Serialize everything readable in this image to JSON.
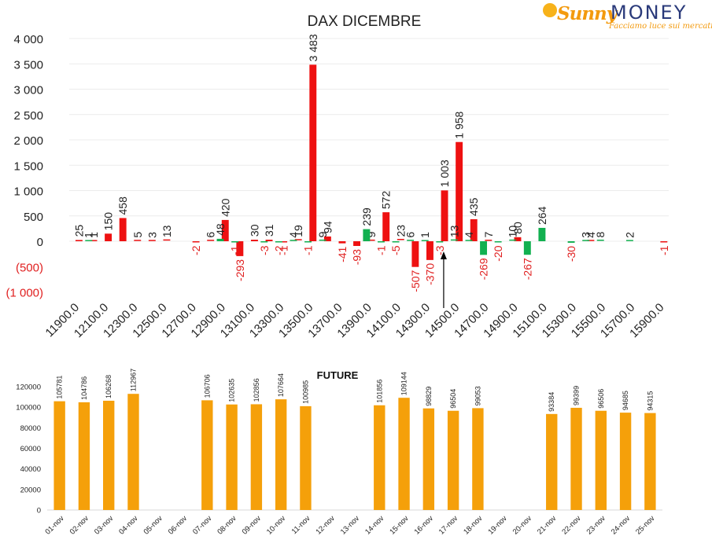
{
  "logo": {
    "brand1": "Sunny",
    "brand2": "MONEY",
    "tagline": "Facciamo luce sui mercati"
  },
  "colors": {
    "calls": "#ee1111",
    "puts": "#12b050",
    "future": "#f5a00a",
    "neg_label": "#e02020",
    "arrow": "#000000"
  },
  "chart_data": [
    {
      "type": "bar",
      "title": "DAX DICEMBRE",
      "ylim": [
        -1000,
        4000
      ],
      "yticks": [
        4000,
        3500,
        3000,
        2500,
        2000,
        1500,
        1000,
        500,
        0,
        -500,
        -1000
      ],
      "ytick_labels": [
        "4 000",
        "3 500",
        "3 000",
        "2 500",
        "2 000",
        "1 500",
        "1 000",
        "500",
        "0",
        "(500)",
        "(1 000)"
      ],
      "xtick_labels": [
        "11900.0",
        "12100.0",
        "12300.0",
        "12500.0",
        "12700.0",
        "12900.0",
        "13100.0",
        "13300.0",
        "13500.0",
        "13700.0",
        "13900.0",
        "14100.0",
        "14300.0",
        "14500.0",
        "14700.0",
        "14900.0",
        "15100.0",
        "15300.0",
        "15500.0",
        "15700.0",
        "15900.0"
      ],
      "strike_step": 100,
      "strike_start": 11900,
      "strike_end": 15900,
      "series": [
        {
          "color_key": "calls",
          "points": [
            {
              "strike": 11900,
              "value": 25
            },
            {
              "strike": 12000,
              "value": 1
            },
            {
              "strike": 12100,
              "value": 150
            },
            {
              "strike": 12200,
              "value": 458
            },
            {
              "strike": 12300,
              "value": 5
            },
            {
              "strike": 12400,
              "value": 3
            },
            {
              "strike": 12500,
              "value": 13
            },
            {
              "strike": 12700,
              "value": -2
            },
            {
              "strike": 12800,
              "value": 6
            },
            {
              "strike": 12900,
              "value": 420
            },
            {
              "strike": 13000,
              "value": -293
            },
            {
              "strike": 13100,
              "value": 30
            },
            {
              "strike": 13200,
              "value": 31
            },
            {
              "strike": 13300,
              "value": -1
            },
            {
              "strike": 13400,
              "value": 19
            },
            {
              "strike": 13500,
              "value": 3483
            },
            {
              "strike": 13600,
              "value": 94
            },
            {
              "strike": 13700,
              "value": -41
            },
            {
              "strike": 13800,
              "value": -93
            },
            {
              "strike": 13900,
              "value": 9
            },
            {
              "strike": 14000,
              "value": 572
            },
            {
              "strike": 14100,
              "value": 23
            },
            {
              "strike": 14200,
              "value": -507
            },
            {
              "strike": 14300,
              "value": -370
            },
            {
              "strike": 14400,
              "value": 1003
            },
            {
              "strike": 14500,
              "value": 1958
            },
            {
              "strike": 14600,
              "value": 435
            },
            {
              "strike": 14700,
              "value": 7
            },
            {
              "strike": 14900,
              "value": 80
            },
            {
              "strike": 15400,
              "value": 4
            },
            {
              "strike": 15900,
              "value": -1
            }
          ]
        },
        {
          "color_key": "puts",
          "points": [
            {
              "strike": 12000,
              "value": 1
            },
            {
              "strike": 12900,
              "value": 48
            },
            {
              "strike": 13000,
              "value": -1
            },
            {
              "strike": 13200,
              "value": -3
            },
            {
              "strike": 13300,
              "value": -2
            },
            {
              "strike": 13400,
              "value": 4
            },
            {
              "strike": 13500,
              "value": -1
            },
            {
              "strike": 13600,
              "value": 9
            },
            {
              "strike": 13900,
              "value": 239
            },
            {
              "strike": 14000,
              "value": -1
            },
            {
              "strike": 14100,
              "value": -5
            },
            {
              "strike": 14200,
              "value": 6
            },
            {
              "strike": 14300,
              "value": 1
            },
            {
              "strike": 14400,
              "value": -3
            },
            {
              "strike": 14500,
              "value": 13
            },
            {
              "strike": 14600,
              "value": 4
            },
            {
              "strike": 14700,
              "value": -269
            },
            {
              "strike": 14800,
              "value": -20
            },
            {
              "strike": 14900,
              "value": 10
            },
            {
              "strike": 15000,
              "value": -267
            },
            {
              "strike": 15100,
              "value": 264
            },
            {
              "strike": 15300,
              "value": -30
            },
            {
              "strike": 15400,
              "value": 3
            },
            {
              "strike": 15500,
              "value": 8
            },
            {
              "strike": 15700,
              "value": 2
            }
          ]
        }
      ],
      "annotation": {
        "type": "arrow",
        "strike": 14400
      }
    },
    {
      "type": "bar",
      "title": "FUTURE",
      "ylim": [
        0,
        120000
      ],
      "yticks": [
        0,
        20000,
        40000,
        60000,
        80000,
        100000,
        120000
      ],
      "categories": [
        "01-nov",
        "02-nov",
        "03-nov",
        "04-nov",
        "05-nov",
        "06-nov",
        "07-nov",
        "08-nov",
        "09-nov",
        "10-nov",
        "11-nov",
        "12-nov",
        "13-nov",
        "14-nov",
        "15-nov",
        "16-nov",
        "17-nov",
        "18-nov",
        "19-nov",
        "20-nov",
        "21-nov",
        "22-nov",
        "23-nov",
        "24-nov",
        "25-nov"
      ],
      "values": [
        105781,
        104786,
        106268,
        112967,
        null,
        null,
        106706,
        102635,
        102856,
        107664,
        100985,
        null,
        null,
        101856,
        109144,
        98829,
        96504,
        99053,
        null,
        null,
        93384,
        99399,
        96506,
        94685,
        94315
      ],
      "value_labels": [
        "105781",
        "104786",
        "106268",
        "112967",
        "",
        "",
        "106706",
        "102635",
        "102856",
        "107664",
        "100985",
        "",
        "",
        "101856",
        "109144",
        "98829",
        "96504",
        "99053",
        "",
        "",
        "93384",
        "99399",
        "96506",
        "94685",
        "94315"
      ]
    }
  ]
}
